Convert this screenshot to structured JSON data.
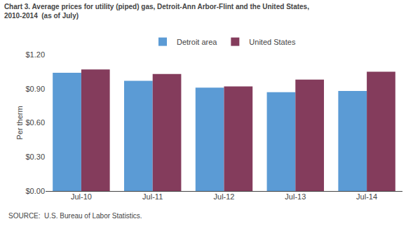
{
  "chart_data": {
    "type": "bar",
    "title": "Chart 3. Average prices for utility (piped) gas, Detroit-Ann Arbor-Flint and the United States,",
    "subtitle": "2010-2014  (as of July)",
    "ylabel": "Per therm",
    "categories": [
      "Jul-10",
      "Jul-11",
      "Jul-12",
      "Jul-13",
      "Jul-14"
    ],
    "series": [
      {
        "name": "Detroit area",
        "color": "#5B9BD5",
        "values": [
          1.04,
          0.97,
          0.91,
          0.87,
          0.88
        ]
      },
      {
        "name": "United States",
        "color": "#843C5C",
        "values": [
          1.07,
          1.03,
          0.92,
          0.98,
          1.05
        ]
      }
    ],
    "ylim": [
      0,
      1.2
    ],
    "yticks": [
      {
        "value": 0.0,
        "label": "$0.00"
      },
      {
        "value": 0.3,
        "label": "$0.30"
      },
      {
        "value": 0.6,
        "label": "$0.60"
      },
      {
        "value": 0.9,
        "label": "$0.90"
      },
      {
        "value": 1.2,
        "label": "$1.20"
      }
    ],
    "grid": false,
    "legend": "top",
    "annotations": [
      "SOURCE:  U.S. Bureau of Labor Statistics."
    ]
  }
}
